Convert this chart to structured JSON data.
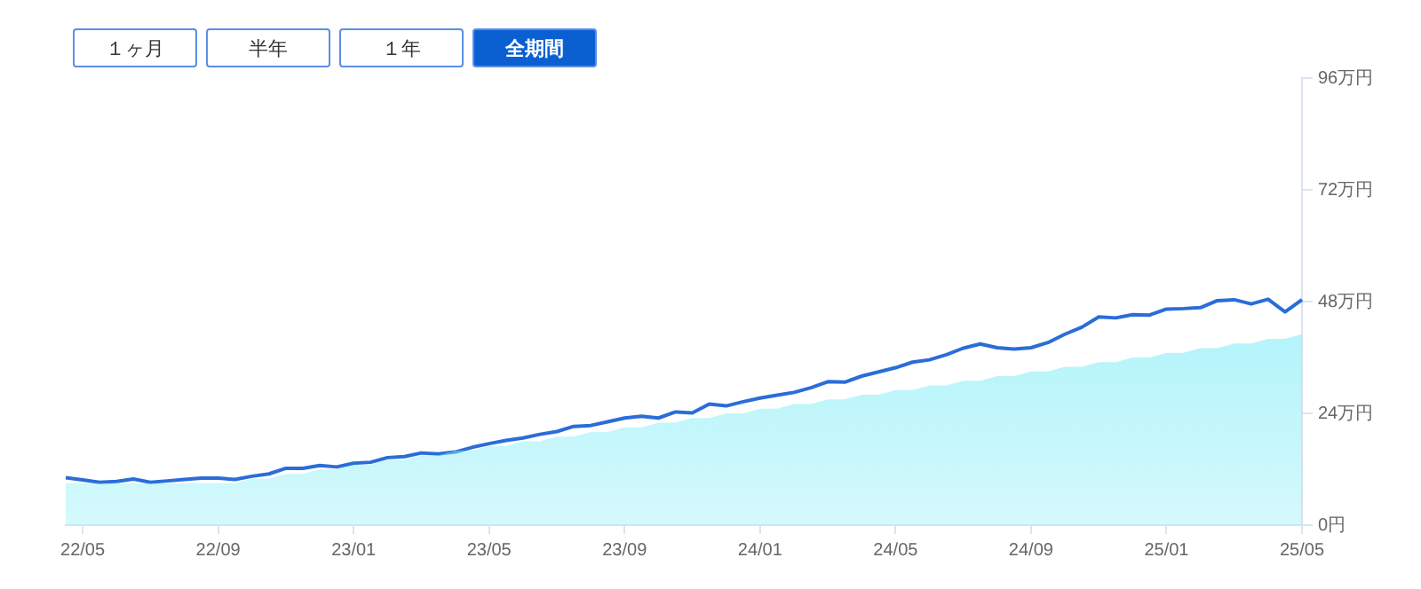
{
  "chart_data": {
    "type": "line",
    "annotations": [
      "１ヶ月",
      "半年",
      "１年",
      "全期間"
    ],
    "categories": [
      null,
      "22/05",
      null,
      null,
      null,
      null,
      null,
      null,
      null,
      "22/09",
      null,
      null,
      null,
      null,
      null,
      null,
      null,
      "23/01",
      null,
      null,
      null,
      null,
      null,
      null,
      null,
      "23/05",
      null,
      null,
      null,
      null,
      null,
      null,
      null,
      "23/09",
      null,
      null,
      null,
      null,
      null,
      null,
      null,
      "24/01",
      null,
      null,
      null,
      null,
      null,
      null,
      null,
      "24/05",
      null,
      null,
      null,
      null,
      null,
      null,
      null,
      "24/09",
      null,
      null,
      null,
      null,
      null,
      null,
      null,
      "25/01",
      null,
      null,
      null,
      null,
      null,
      null,
      null,
      "25/05"
    ],
    "ylim": [
      0,
      96
    ],
    "yticks": [
      {
        "value": 0,
        "label": "0円"
      },
      {
        "value": 24,
        "label": "24万円"
      },
      {
        "value": 48,
        "label": "48万円"
      },
      {
        "value": 72,
        "label": "72万円"
      },
      {
        "value": 96,
        "label": "96万円"
      }
    ],
    "grid": false,
    "legend": false,
    "marker": "none",
    "series": [
      {
        "type": "area",
        "color": "#86eef7",
        "values": [
          9,
          9,
          9,
          9,
          9,
          9,
          9,
          9,
          9,
          9,
          9,
          10,
          10,
          11,
          11,
          12,
          12,
          13,
          13,
          14,
          14,
          15,
          15,
          16,
          16,
          17,
          17,
          18,
          18,
          19,
          19,
          20,
          20,
          21,
          21,
          22,
          22,
          23,
          23,
          24,
          24,
          25,
          25,
          26,
          26,
          27,
          27,
          28,
          28,
          29,
          29,
          30,
          30,
          31,
          31,
          32,
          32,
          33,
          33,
          34,
          34,
          35,
          35,
          36,
          36,
          37,
          37,
          38,
          38,
          39,
          39,
          40,
          40,
          41
        ]
      },
      {
        "type": "line",
        "color": "#2a6dd9",
        "values": [
          10.2,
          9.7,
          9.2,
          9.4,
          9.9,
          9.2,
          9.5,
          9.8,
          10.1,
          10.1,
          9.8,
          10.5,
          11.0,
          12.2,
          12.2,
          12.8,
          12.5,
          13.3,
          13.5,
          14.5,
          14.7,
          15.5,
          15.3,
          15.7,
          16.7,
          17.5,
          18.2,
          18.7,
          19.5,
          20.1,
          21.2,
          21.4,
          22.2,
          23.0,
          23.4,
          23.0,
          24.3,
          24.1,
          26.0,
          25.6,
          26.5,
          27.3,
          27.9,
          28.5,
          29.5,
          30.8,
          30.7,
          32.0,
          32.9,
          33.8,
          35.0,
          35.5,
          36.6,
          38.0,
          38.9,
          38.1,
          37.8,
          38.1,
          39.2,
          41.0,
          42.5,
          44.7,
          44.5,
          45.2,
          45.1,
          46.4,
          46.5,
          46.7,
          48.2,
          48.4,
          47.5,
          48.5,
          45.8,
          48.4
        ]
      }
    ]
  }
}
